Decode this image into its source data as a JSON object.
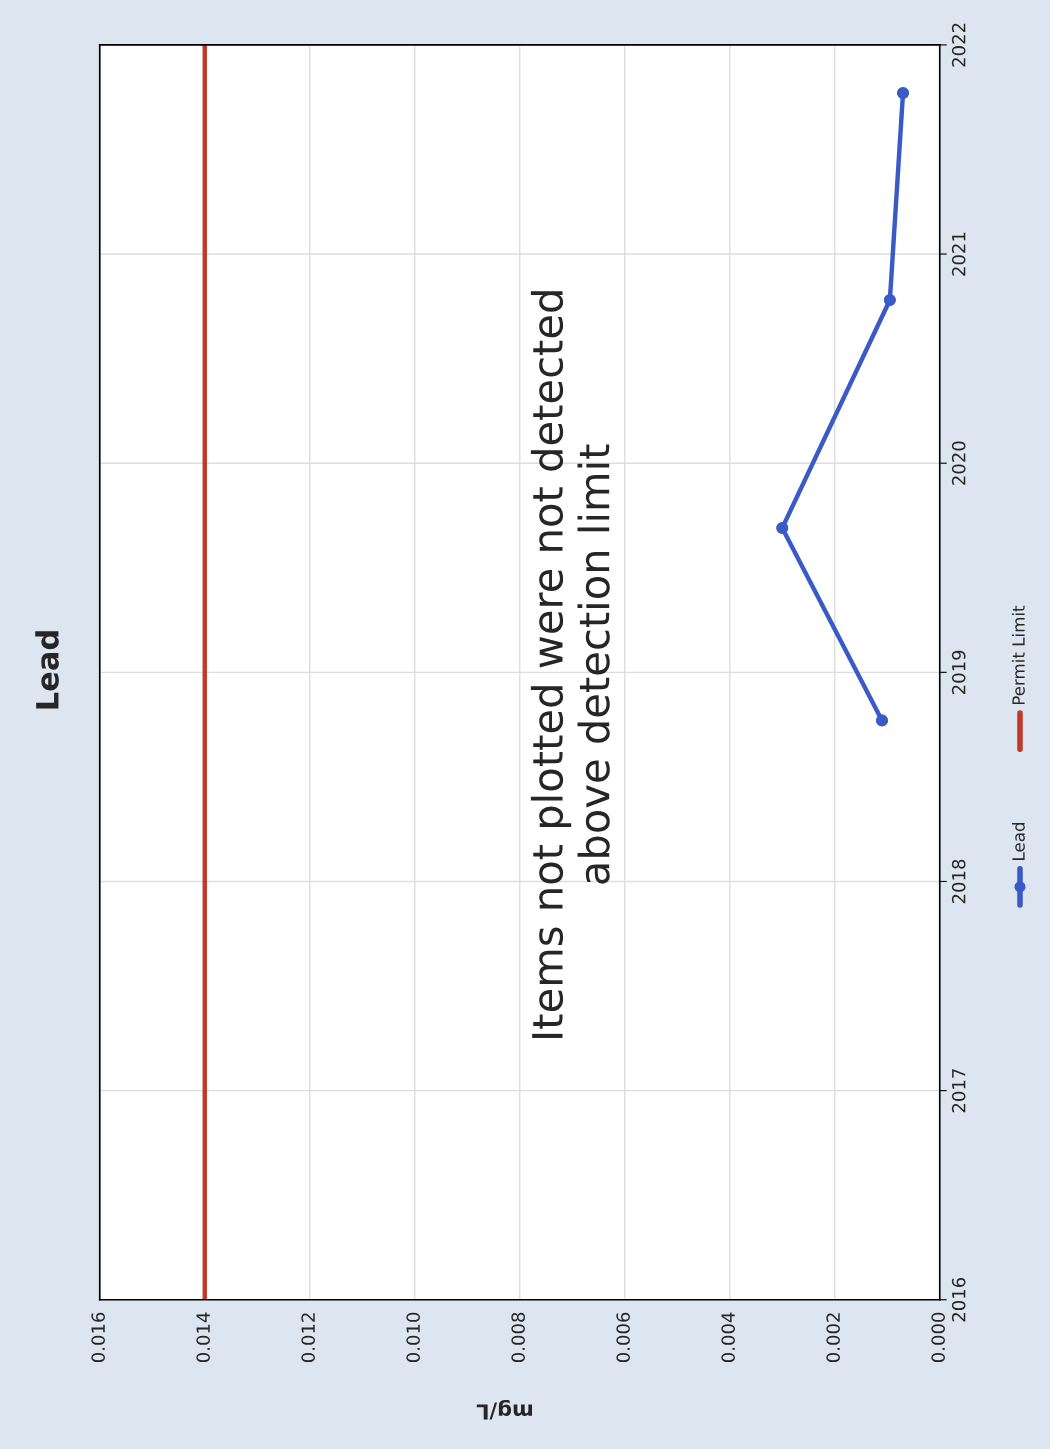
{
  "chart_data": {
    "type": "line",
    "title": "Lead",
    "xlabel": "mg/L",
    "x": [
      0.0011,
      0.003,
      0.00095,
      0.0007
    ],
    "series": [
      {
        "name": "Lead",
        "color": "#3a5bc7",
        "values": [
          2018.77,
          2019.69,
          2020.78,
          2021.77
        ],
        "marker": "circle"
      },
      {
        "name": "Permit Limit",
        "color": "#c0392b",
        "type": "line",
        "x": [
          0.014,
          0.014
        ],
        "values": [
          2016,
          2022
        ],
        "marker": "none"
      }
    ],
    "xlim": [
      0.016,
      0
    ],
    "xticks": [
      {
        "value": 0,
        "label": "0.000"
      },
      {
        "value": 0.002,
        "label": "0.002"
      },
      {
        "value": 0.004,
        "label": "0.004"
      },
      {
        "value": 0.006,
        "label": "0.006"
      },
      {
        "value": 0.008,
        "label": "0.008"
      },
      {
        "value": 0.01,
        "label": "0.010"
      },
      {
        "value": 0.012,
        "label": "0.012"
      },
      {
        "value": 0.014,
        "label": "0.014"
      },
      {
        "value": 0.016,
        "label": "0.016"
      }
    ],
    "ylim": [
      2016,
      2022
    ],
    "yticks": [
      2016,
      2017,
      2018,
      2019,
      2020,
      2021,
      2022
    ],
    "grid": true,
    "legend": "bottom",
    "annotations": [
      "Items not plotted were not detected\nabove detection limit"
    ]
  }
}
